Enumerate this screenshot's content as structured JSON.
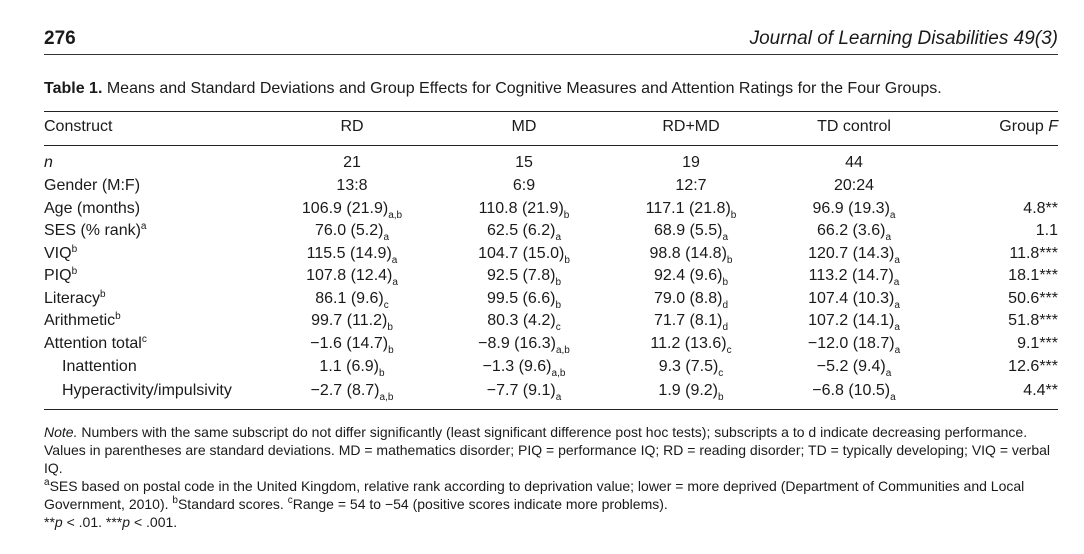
{
  "header": {
    "page_number": "276",
    "journal": "Journal of Learning Disabilities 49(3)"
  },
  "caption": {
    "label": "Table 1.",
    "text": "Means and Standard Deviations and Group Effects for Cognitive Measures and Attention Ratings for the Four Groups."
  },
  "columns": {
    "construct": "Construct",
    "rd": "RD",
    "md": "MD",
    "rdmd": "RD+MD",
    "td": "TD control",
    "f_prefix": "Group ",
    "f_italic": "F"
  },
  "rows": [
    {
      "construct": "n",
      "sup": "",
      "rd": "21",
      "rd_sub": "",
      "md": "15",
      "md_sub": "",
      "rdmd": "19",
      "rdmd_sub": "",
      "td": "44",
      "td_sub": "",
      "f": "",
      "f_stars": ""
    },
    {
      "construct": "Gender (M:F)",
      "sup": "",
      "rd": "13:8",
      "rd_sub": "",
      "md": "6:9",
      "md_sub": "",
      "rdmd": "12:7",
      "rdmd_sub": "",
      "td": "20:24",
      "td_sub": "",
      "f": "",
      "f_stars": ""
    },
    {
      "construct": "Age (months)",
      "sup": "",
      "rd": "106.9 (21.9)",
      "rd_sub": "a,b",
      "md": "110.8 (21.9)",
      "md_sub": "b",
      "rdmd": "117.1 (21.8)",
      "rdmd_sub": "b",
      "td": "96.9 (19.3)",
      "td_sub": "a",
      "f": "4.8",
      "f_stars": "**"
    },
    {
      "construct": "SES (% rank)",
      "sup": "a",
      "rd": "76.0 (5.2)",
      "rd_sub": "a",
      "md": "62.5 (6.2)",
      "md_sub": "a",
      "rdmd": "68.9 (5.5)",
      "rdmd_sub": "a",
      "td": "66.2 (3.6)",
      "td_sub": "a",
      "f": "1.1",
      "f_stars": ""
    },
    {
      "construct": "VIQ",
      "sup": "b",
      "rd": "115.5 (14.9)",
      "rd_sub": "a",
      "md": "104.7 (15.0)",
      "md_sub": "b",
      "rdmd": "98.8 (14.8)",
      "rdmd_sub": "b",
      "td": "120.7 (14.3)",
      "td_sub": "a",
      "f": "11.8",
      "f_stars": "***"
    },
    {
      "construct": "PIQ",
      "sup": "b",
      "rd": "107.8 (12.4)",
      "rd_sub": "a",
      "md": "92.5 (7.8)",
      "md_sub": "b",
      "rdmd": "92.4 (9.6)",
      "rdmd_sub": "b",
      "td": "113.2 (14.7)",
      "td_sub": "a",
      "f": "18.1",
      "f_stars": "***"
    },
    {
      "construct": "Literacy",
      "sup": "b",
      "rd": "86.1 (9.6)",
      "rd_sub": "c",
      "md": "99.5 (6.6)",
      "md_sub": "b",
      "rdmd": "79.0 (8.8)",
      "rdmd_sub": "d",
      "td": "107.4 (10.3)",
      "td_sub": "a",
      "f": "50.6",
      "f_stars": "***"
    },
    {
      "construct": "Arithmetic",
      "sup": "b",
      "rd": "99.7 (11.2)",
      "rd_sub": "b",
      "md": "80.3 (4.2)",
      "md_sub": "c",
      "rdmd": "71.7 (8.1)",
      "rdmd_sub": "d",
      "td": "107.2 (14.1)",
      "td_sub": "a",
      "f": "51.8",
      "f_stars": "***"
    },
    {
      "construct": "Attention total",
      "sup": "c",
      "rd": "−1.6 (14.7)",
      "rd_sub": "b",
      "md": "−8.9 (16.3)",
      "md_sub": "a,b",
      "rdmd": "11.2 (13.6)",
      "rdmd_sub": "c",
      "td": "−12.0 (18.7)",
      "td_sub": "a",
      "f": "9.1",
      "f_stars": "***"
    },
    {
      "construct": "Inattention",
      "sup": "",
      "rd": "1.1 (6.9)",
      "rd_sub": "b",
      "md": "−1.3 (9.6)",
      "md_sub": "a,b",
      "rdmd": "9.3 (7.5)",
      "rdmd_sub": "c",
      "td": "−5.2 (9.4)",
      "td_sub": "a",
      "f": "12.6",
      "f_stars": "***"
    },
    {
      "construct": "Hyperactivity/impulsivity",
      "sup": "",
      "rd": "−2.7 (8.7)",
      "rd_sub": "a,b",
      "md": "−7.7 (9.1)",
      "md_sub": "a",
      "rdmd": "1.9 (9.2)",
      "rdmd_sub": "b",
      "td": "−6.8 (10.5)",
      "td_sub": "a",
      "f": "4.4",
      "f_stars": "**"
    }
  ],
  "notes": {
    "note_label": "Note.",
    "note_text": " Numbers with the same subscript do not differ significantly (least significant difference post hoc tests); subscripts a to d indicate decreasing performance. Values in parentheses are standard deviations. MD = mathematics disorder; PIQ = performance IQ; RD = reading disorder; TD = typically developing; VIQ = verbal IQ.",
    "fn_a_mark": "a",
    "fn_a_text": "SES based on postal code in the United Kingdom, relative rank according to deprivation value; lower = more deprived (Department of Communities and Local Government, 2010). ",
    "fn_b_mark": "b",
    "fn_b_text": "Standard scores. ",
    "fn_c_mark": "c",
    "fn_c_text": "Range = 54 to −54 (positive scores indicate more problems).",
    "p1_stars": "**",
    "p1_sym": "p",
    "p1_val": " < .01. ",
    "p2_stars": "***",
    "p2_sym": "p",
    "p2_val": " < .001."
  }
}
